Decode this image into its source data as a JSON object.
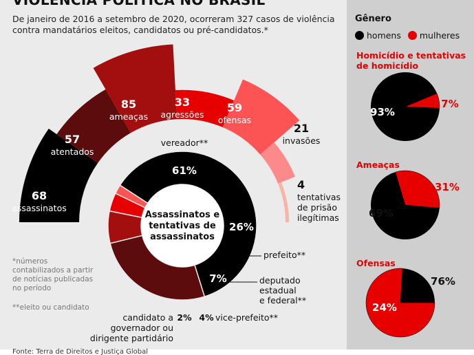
{
  "title": "VIOLÊNCIA POLÍTICA NO BRASIL",
  "intro": "De janeiro de 2016 a setembro de 2020, ocorreram 327 casos de violência contra mandatários eleitos, candidatos ou pré-candidatos.*",
  "footnote_1": "*números contabilizados a partir de notícias publicadas no período",
  "footnote_2": "**eleito ou candidato",
  "source": "Fonte: Terra de Direitos e Justiça Global",
  "colors": {
    "black": "#000000",
    "red": "#e60000",
    "dark_red": "#5c0c0c",
    "crimson": "#a30e0e",
    "coral": "#fc5454",
    "salmon": "#fc8a8a",
    "pale": "#f8b4a6",
    "panel": "#cfcfcf"
  },
  "chart_data": [
    {
      "type": "bar",
      "layout": "radial",
      "categories": [
        "assassinatos",
        "atentados",
        "ameaças",
        "agressões",
        "ofensas",
        "invasões",
        "tentativas de prisão ilegítimas"
      ],
      "values": [
        68,
        57,
        85,
        33,
        59,
        21,
        4
      ],
      "colors": [
        "#000000",
        "#5c0c0c",
        "#a30e0e",
        "#e60000",
        "#fc5454",
        "#fc8a8a",
        "#f8b4a6"
      ]
    },
    {
      "type": "pie",
      "style": "donut",
      "center_label": "Assassinatos e tentativas de assassinatos",
      "slices": [
        {
          "label": "vereador**",
          "value": 61,
          "display": "61%",
          "color": "#000000"
        },
        {
          "label": "prefeito**",
          "value": 26,
          "display": "26%",
          "color": "#5c0c0c"
        },
        {
          "label": "deputado estadual e federal**",
          "value": 7,
          "display": "7%",
          "color": "#a30e0e"
        },
        {
          "label": "vice-prefeito**",
          "value": 4,
          "display": "4%",
          "color": "#e60000"
        },
        {
          "label": "candidato a governador ou dirigente partidário",
          "value": 2,
          "display": "2%",
          "color": "#fc5454"
        }
      ]
    },
    {
      "type": "pie",
      "group_title": "Gênero",
      "legend": [
        {
          "name": "homens",
          "color": "#000000"
        },
        {
          "name": "mulheres",
          "color": "#e60000"
        }
      ],
      "title": "Homicídio e tentativas de homicídio",
      "men": 93,
      "women": 7,
      "men_label": "93%",
      "women_label": "7%"
    },
    {
      "type": "pie",
      "title": "Ameaças",
      "men": 69,
      "women": 31,
      "men_label": "69%",
      "women_label": "31%"
    },
    {
      "type": "pie",
      "title": "Ofensas",
      "men": 24,
      "women": 76,
      "men_label": "24%",
      "women_label": "76%"
    }
  ]
}
